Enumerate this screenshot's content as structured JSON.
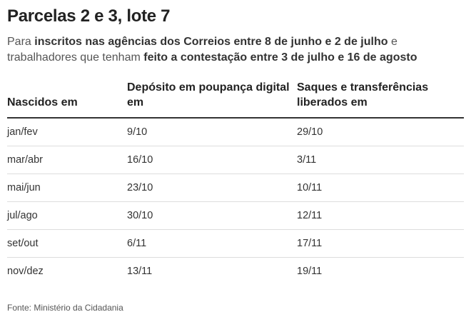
{
  "title": "Parcelas 2 e 3, lote 7",
  "subtitle": {
    "part1": "Para ",
    "bold1": "inscritos nas agências dos Correios entre 8 de junho e 2 de julho",
    "part2": " e trabalhadores que tenham ",
    "bold2": "feito a contestação entre 3 de julho e 16 de agosto"
  },
  "table": {
    "headers": [
      "Nascidos em",
      "Depósito em poupança digital em",
      "Saques e transferências liberados em"
    ],
    "rows": [
      [
        "jan/fev",
        "9/10",
        "29/10"
      ],
      [
        "mar/abr",
        "16/10",
        "3/11"
      ],
      [
        "mai/jun",
        "23/10",
        "10/11"
      ],
      [
        "jul/ago",
        "30/10",
        "12/11"
      ],
      [
        "set/out",
        "6/11",
        "17/11"
      ],
      [
        "nov/dez",
        "13/11",
        "19/11"
      ]
    ]
  },
  "source": "Fonte: Ministério da Cidadania"
}
